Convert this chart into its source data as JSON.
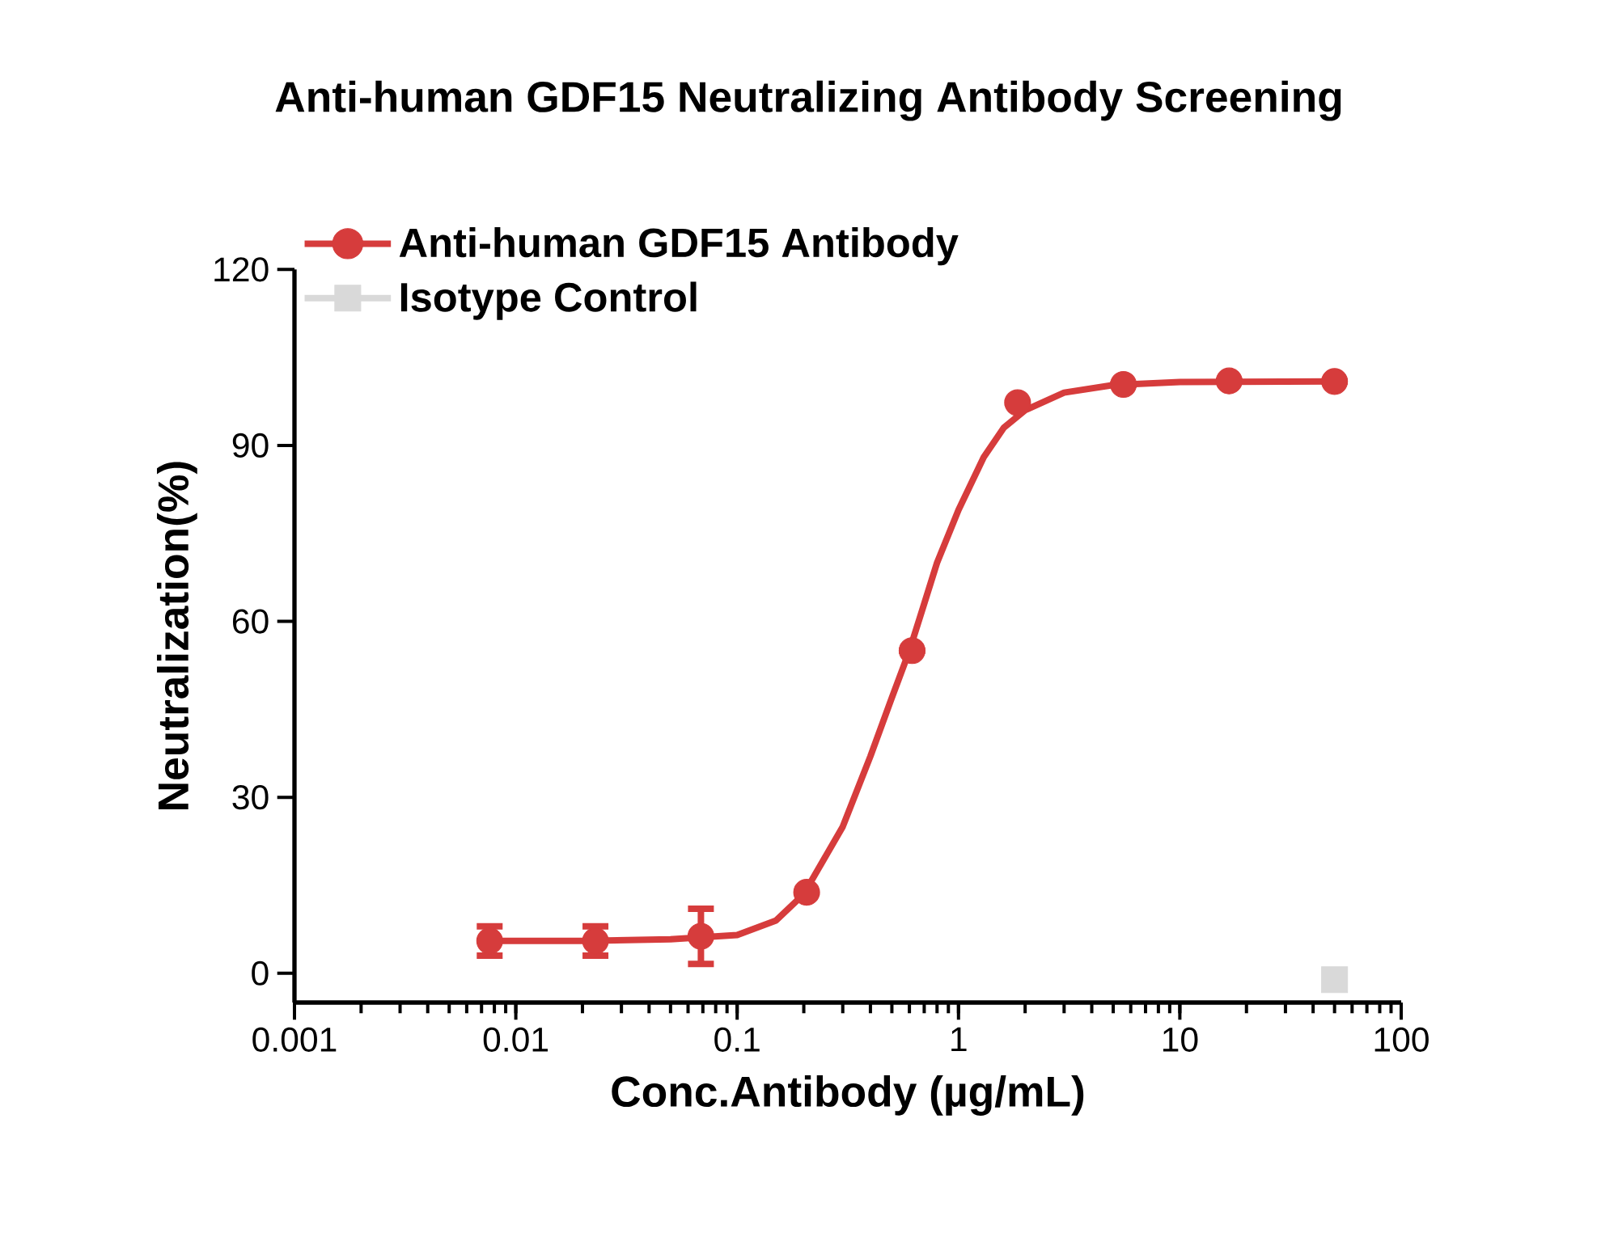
{
  "chart_data": {
    "type": "scatter",
    "title": "Anti-human GDF15 Neutralizing Antibody Screening",
    "xlabel": "Conc.Antibody (µg/mL)",
    "ylabel": "Neutralization(%)",
    "log": "x",
    "xlim": [
      0.001,
      100
    ],
    "xticks": [
      {
        "value": 0.001,
        "label": "0.001"
      },
      {
        "value": 0.01,
        "label": "0.01"
      },
      {
        "value": 0.1,
        "label": "0.1"
      },
      1,
      10,
      100
    ],
    "ylim": [
      -5,
      120
    ],
    "yticks": [
      0,
      30,
      60,
      90,
      120
    ],
    "grid": false,
    "legend": "top left",
    "series": [
      {
        "type": "line",
        "color": "#d63c3c",
        "line_style": "solid",
        "marker": "none",
        "x": [
          0.0076,
          0.02,
          0.05,
          0.1,
          0.15,
          0.2,
          0.3,
          0.4,
          0.5,
          0.6,
          0.7,
          0.8,
          1,
          1.3,
          1.6,
          2,
          3,
          5,
          10,
          50
        ],
        "values": [
          5.5,
          5.5,
          5.8,
          6.5,
          9,
          13.5,
          25,
          37,
          47,
          55,
          63,
          70,
          79,
          88,
          93,
          96,
          99,
          100.3,
          100.8,
          100.9
        ]
      },
      {
        "name": "Anti-human GDF15 Antibody",
        "color": "#d63c3c",
        "marker": "circle",
        "x": [
          0.00762,
          0.0229,
          0.0686,
          0.206,
          0.617,
          1.85,
          5.56,
          16.7,
          50
        ],
        "values": [
          5.5,
          5.5,
          6.3,
          13.8,
          55,
          97.3,
          100.4,
          101,
          100.9
        ],
        "errors": [
          2.5,
          2.5,
          4.7,
          null,
          null,
          null,
          null,
          null,
          null
        ]
      },
      {
        "name": "Isotype Control",
        "color": "#d9d9d9",
        "marker": "square",
        "x": [
          50
        ],
        "values": [
          -1.1
        ]
      }
    ]
  }
}
